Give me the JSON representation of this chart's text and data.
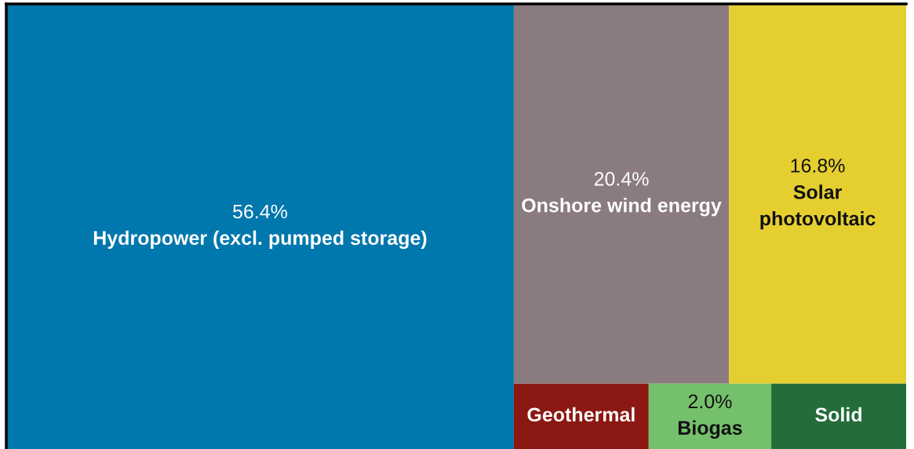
{
  "chart_data": {
    "type": "other",
    "categories": [
      "Hydropower (excl. pumped storage)",
      "Onshore wind energy",
      "Solar photovoltaic",
      "Geothermal",
      "Biogas",
      "Solid"
    ],
    "values": [
      56.4,
      20.4,
      16.8,
      null,
      2.0,
      null
    ],
    "value_labels": [
      "56.4%",
      "20.4%",
      "16.8%",
      null,
      "2.0%",
      null
    ],
    "colors": [
      "#0077ad",
      "#8a7b7e",
      "#e5cf30",
      "#8b1812",
      "#75c06c",
      "#246d3a"
    ]
  }
}
